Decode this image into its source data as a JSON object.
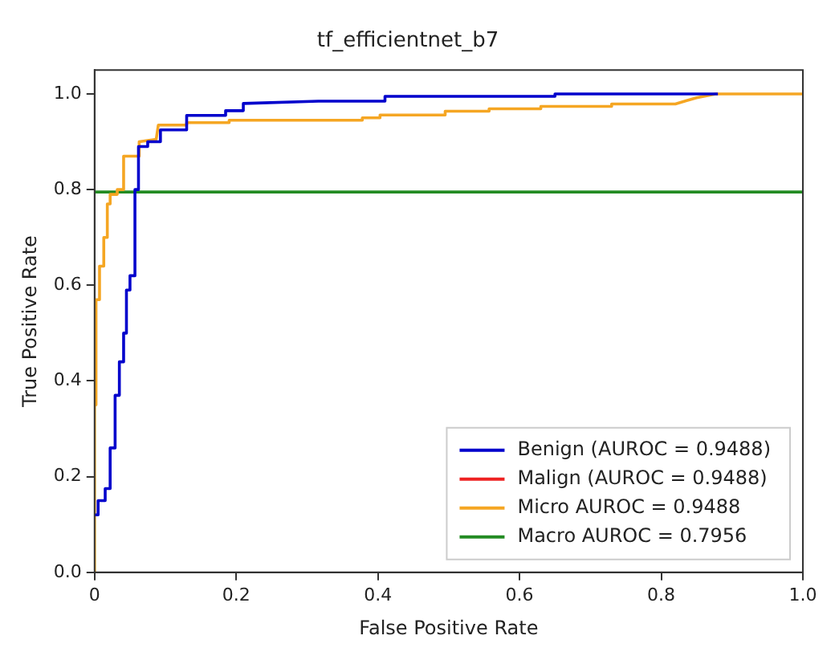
{
  "chart_data": {
    "type": "line",
    "title": "tf_efficientnet_b7",
    "xlabel": "False Positive Rate",
    "ylabel": "True Positive Rate",
    "xlim": [
      0,
      1
    ],
    "ylim": [
      0,
      1.05
    ],
    "xticks": [
      0,
      {
        "value": 0.2,
        "label": "0.2"
      },
      {
        "value": 0.4,
        "label": "0.4"
      },
      {
        "value": 0.6,
        "label": "0.6"
      },
      {
        "value": 0.8,
        "label": "0.8"
      },
      {
        "value": 1,
        "label": "1.0"
      }
    ],
    "yticks": [
      {
        "value": 0,
        "label": "0.0"
      },
      {
        "value": 0.2,
        "label": "0.2"
      },
      {
        "value": 0.4,
        "label": "0.4"
      },
      {
        "value": 0.6,
        "label": "0.6"
      },
      {
        "value": 0.8,
        "label": "0.8"
      },
      {
        "value": 1,
        "label": "1.0"
      }
    ],
    "grid": false,
    "legend": "bottom right",
    "marker": "none",
    "line_style": "solid",
    "series": [
      {
        "name": "Benign (AUROC = 0.9488)",
        "color": "#0000cc",
        "x": [
          0,
          0.005,
          0.005,
          0.015,
          0.015,
          0.022,
          0.022,
          0.029,
          0.029,
          0.035,
          0.035,
          0.041,
          0.041,
          0.045,
          0.045,
          0.05,
          0.05,
          0.057,
          0.057,
          0.062,
          0.062,
          0.075,
          0.075,
          0.093,
          0.093,
          0.13,
          0.13,
          0.185,
          0.185,
          0.21,
          0.21,
          0.316,
          0.41,
          0.41,
          0.65,
          0.65,
          0.88
        ],
        "values": [
          0.12,
          0.12,
          0.15,
          0.15,
          0.175,
          0.175,
          0.26,
          0.26,
          0.37,
          0.37,
          0.44,
          0.44,
          0.5,
          0.5,
          0.59,
          0.59,
          0.62,
          0.62,
          0.8,
          0.8,
          0.89,
          0.89,
          0.9,
          0.9,
          0.925,
          0.925,
          0.955,
          0.955,
          0.965,
          0.965,
          0.98,
          0.985,
          0.985,
          0.995,
          0.995,
          1,
          1
        ]
      },
      {
        "name": "Malign (AUROC = 0.9488)",
        "color": "#ee2222"
      },
      {
        "name": "Micro AUROC = 0.9488",
        "color": "#f5a623",
        "x": [
          0,
          0,
          0.002,
          0.002,
          0.007,
          0.007,
          0.013,
          0.013,
          0.018,
          0.018,
          0.022,
          0.022,
          0.032,
          0.032,
          0.041,
          0.041,
          0.063,
          0.063,
          0.087,
          0.09,
          0.13,
          0.13,
          0.19,
          0.19,
          0.378,
          0.378,
          0.403,
          0.403,
          0.495,
          0.495,
          0.557,
          0.557,
          0.63,
          0.63,
          0.73,
          0.73,
          0.82,
          0.836,
          0.85,
          0.877,
          1
        ],
        "values": [
          0,
          0.35,
          0.35,
          0.57,
          0.57,
          0.64,
          0.64,
          0.7,
          0.7,
          0.77,
          0.77,
          0.79,
          0.79,
          0.8,
          0.8,
          0.87,
          0.87,
          0.9,
          0.905,
          0.935,
          0.935,
          0.94,
          0.94,
          0.945,
          0.945,
          0.95,
          0.95,
          0.956,
          0.956,
          0.964,
          0.964,
          0.969,
          0.969,
          0.974,
          0.974,
          0.979,
          0.979,
          0.986,
          0.992,
          1,
          1
        ]
      },
      {
        "name": "Macro AUROC = 0.7956",
        "color": "#228b22",
        "x": [
          0,
          1
        ],
        "values": [
          0.795,
          0.795
        ]
      }
    ]
  }
}
